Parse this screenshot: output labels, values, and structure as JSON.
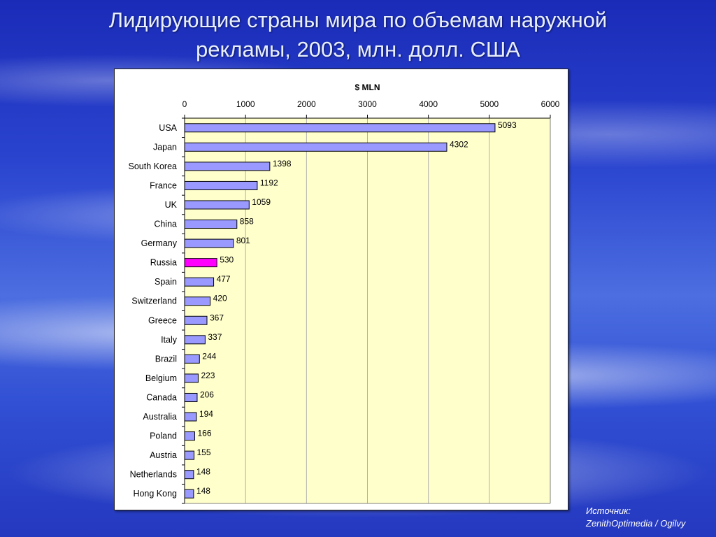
{
  "slide": {
    "title_line1": "Лидирующие страны мира по объемам наружной",
    "title_line2": "рекламы, 2003, млн. долл. США",
    "source_label": "Источник:",
    "source_text": "ZenithOptimedia / Ogilvy"
  },
  "colors": {
    "bar_fill": "#9999ff",
    "highlight_fill": "#ff00ff",
    "plot_background": "#ffffcc",
    "bar_stroke": "#000000"
  },
  "chart_data": {
    "type": "bar",
    "orientation": "horizontal",
    "title": "$ MLN",
    "xlabel": "",
    "ylabel": "",
    "xlim": [
      0,
      6000
    ],
    "ticks": [
      0,
      1000,
      2000,
      3000,
      4000,
      5000,
      6000
    ],
    "axis_position": "top",
    "grid": true,
    "categories": [
      "USA",
      "Japan",
      "South Korea",
      "France",
      "UK",
      "China",
      "Germany",
      "Russia",
      "Spain",
      "Switzerland",
      "Greece",
      "Italy",
      "Brazil",
      "Belgium",
      "Canada",
      "Australia",
      "Poland",
      "Austria",
      "Netherlands",
      "Hong Kong"
    ],
    "values": [
      5093,
      4302,
      1398,
      1192,
      1059,
      858,
      801,
      530,
      477,
      420,
      367,
      337,
      244,
      223,
      206,
      194,
      166,
      155,
      148,
      148
    ],
    "highlight": "Russia"
  }
}
